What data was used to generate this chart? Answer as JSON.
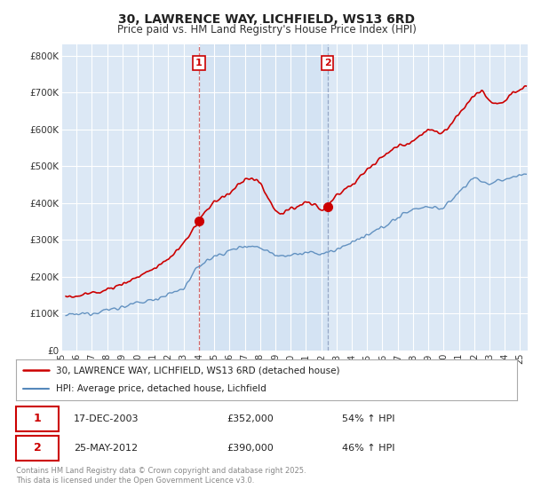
{
  "title": "30, LAWRENCE WAY, LICHFIELD, WS13 6RD",
  "subtitle": "Price paid vs. HM Land Registry's House Price Index (HPI)",
  "ylabel_ticks": [
    "£0",
    "£100K",
    "£200K",
    "£300K",
    "£400K",
    "£500K",
    "£600K",
    "£700K",
    "£800K"
  ],
  "ytick_values": [
    0,
    100000,
    200000,
    300000,
    400000,
    500000,
    600000,
    700000,
    800000
  ],
  "ylim": [
    0,
    830000
  ],
  "xlim_start": 1995.3,
  "xlim_end": 2025.5,
  "background_color": "#dce8f5",
  "grid_color": "#ffffff",
  "red_color": "#cc0000",
  "blue_color": "#5588bb",
  "shade_color": "#d0e4f5",
  "sale1_x": 2004.0,
  "sale1_y": 352000,
  "sale1_label": "1",
  "sale2_x": 2012.4,
  "sale2_y": 390000,
  "sale2_label": "2",
  "legend_line1": "30, LAWRENCE WAY, LICHFIELD, WS13 6RD (detached house)",
  "legend_line2": "HPI: Average price, detached house, Lichfield",
  "annotation1_date": "17-DEC-2003",
  "annotation1_price": "£352,000",
  "annotation1_hpi": "54% ↑ HPI",
  "annotation2_date": "25-MAY-2012",
  "annotation2_price": "£390,000",
  "annotation2_hpi": "46% ↑ HPI",
  "footer": "Contains HM Land Registry data © Crown copyright and database right 2025.\nThis data is licensed under the Open Government Licence v3.0.",
  "xtick_years": [
    "95",
    "96",
    "97",
    "98",
    "99",
    "00",
    "01",
    "02",
    "03",
    "04",
    "05",
    "06",
    "07",
    "08",
    "09",
    "10",
    "11",
    "12",
    "13",
    "14",
    "15",
    "16",
    "17",
    "18",
    "19",
    "20",
    "21",
    "22",
    "23",
    "24",
    "25"
  ],
  "xtick_vals": [
    1995,
    1996,
    1997,
    1998,
    1999,
    2000,
    2001,
    2002,
    2003,
    2004,
    2005,
    2006,
    2007,
    2008,
    2009,
    2010,
    2011,
    2012,
    2013,
    2014,
    2015,
    2016,
    2017,
    2018,
    2019,
    2020,
    2021,
    2022,
    2023,
    2024,
    2025
  ]
}
